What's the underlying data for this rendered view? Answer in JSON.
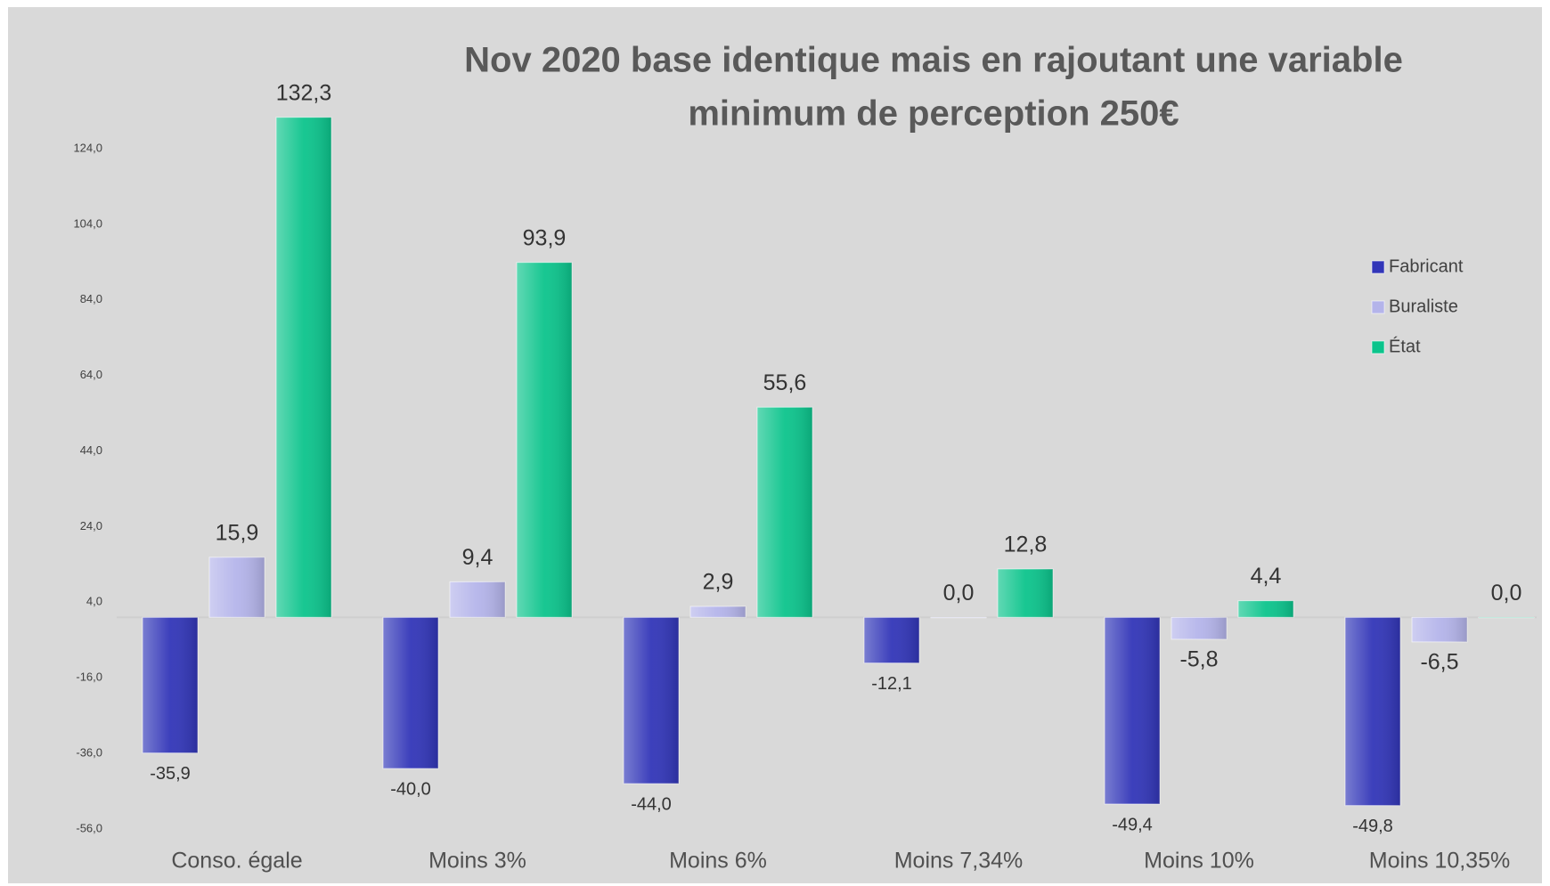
{
  "chart_data": {
    "type": "bar",
    "title": [
      "Nov 2020 base identique mais en rajoutant une variable",
      "minimum de perception 250€"
    ],
    "categories": [
      "Conso. égale",
      "Moins 3%",
      "Moins 6%",
      "Moins 7,34%",
      "Moins 10%",
      "Moins 10,35%"
    ],
    "series": [
      {
        "name": "Fabricant",
        "color": "#3236b8",
        "values": [
          -35.9,
          -40.0,
          -44.0,
          -12.1,
          -49.4,
          -49.8
        ],
        "value_labels": [
          "-35,9",
          "-40,0",
          "-44,0",
          "-12,1",
          "-49,4",
          "-49,8"
        ]
      },
      {
        "name": "Buraliste",
        "color": "#b4b4ea",
        "values": [
          15.9,
          9.4,
          2.9,
          0.0,
          -5.8,
          -6.5
        ],
        "value_labels": [
          "15,9",
          "9,4",
          "2,9",
          "0,0",
          "-5,8",
          "-6,5"
        ]
      },
      {
        "name": "État",
        "color": "#0cc48c",
        "values": [
          132.3,
          93.9,
          55.6,
          12.8,
          4.4,
          0.0
        ],
        "value_labels": [
          "132,3",
          "93,9",
          "55,6",
          "12,8",
          "4,4",
          "0,0"
        ]
      }
    ],
    "ylim": [
      -56,
      140
    ],
    "yticks": [
      {
        "value": -56,
        "label": "-56,0"
      },
      {
        "value": -36,
        "label": "-36,0"
      },
      {
        "value": -16,
        "label": "-16,0"
      },
      {
        "value": 4,
        "label": "4,0"
      },
      {
        "value": 24,
        "label": "24,0"
      },
      {
        "value": 44,
        "label": "44,0"
      },
      {
        "value": 64,
        "label": "64,0"
      },
      {
        "value": 84,
        "label": "84,0"
      },
      {
        "value": 104,
        "label": "104,0"
      },
      {
        "value": 124,
        "label": "124,0"
      }
    ],
    "grid": false,
    "legend": "right"
  }
}
